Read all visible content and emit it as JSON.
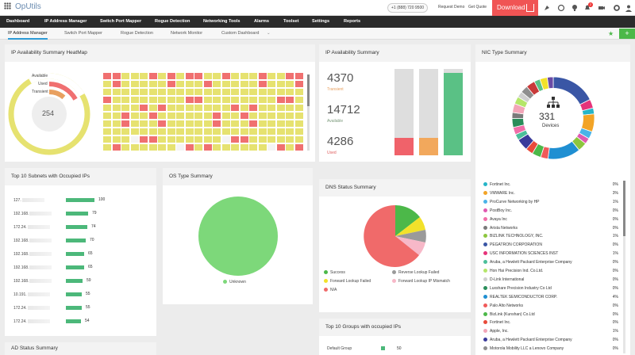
{
  "app": {
    "title": "OpUtils",
    "phone": "+1 (888) 720 9500",
    "request_demo": "Request Demo",
    "get_quote": "Get Quote",
    "download": "Download",
    "notification_count": "2"
  },
  "nav": [
    "Dashboard",
    "IP Address Manager",
    "Switch Port Mapper",
    "Rogue Detection",
    "Networking Tools",
    "Alarms",
    "Toolset",
    "Settings",
    "Reports"
  ],
  "tabs": [
    "IP Address Manager",
    "Switch Port Mapper",
    "Rogue Detection",
    "Network Monitor",
    "Custom Dashboard"
  ],
  "heatmap": {
    "title": "IP Availability Summary HeatMap",
    "legend": [
      "Available",
      "Used",
      "Transient"
    ],
    "center_value": "254",
    "colors": {
      "available": "#e6e270",
      "used": "#f07070",
      "transient": "#e8a060"
    }
  },
  "ip_summary": {
    "title": "IP Availability Summary",
    "transient_value": "4370",
    "transient_label": "Transient",
    "available_value": "14712",
    "available_label": "Available",
    "used_value": "4286",
    "used_label": "Used",
    "bars": [
      {
        "color": "#f0626a",
        "fill": 0.2
      },
      {
        "color": "#f2a85c",
        "fill": 0.2
      },
      {
        "color": "#5ac185",
        "fill": 0.95
      }
    ]
  },
  "nic": {
    "title": "NIC Type Summary",
    "center_value": "331",
    "center_label": "Devices",
    "rows": [
      {
        "name": "Fortinet Inc.",
        "pct": "0%",
        "color": "#26b5c8"
      },
      {
        "name": "VMWARE Inc.",
        "pct": "3%",
        "color": "#f2a427"
      },
      {
        "name": "ProCurve Networking by HP",
        "pct": "1%",
        "color": "#4ab3e8"
      },
      {
        "name": "PostBoy Inc.",
        "pct": "0%",
        "color": "#e05ab0"
      },
      {
        "name": "Avaya Inc",
        "pct": "0%",
        "color": "#f06ea8"
      },
      {
        "name": "Arista Networks",
        "pct": "0%",
        "color": "#7a7a7a"
      },
      {
        "name": "BIZLINK TECHNOLOGY, INC.",
        "pct": "1%",
        "color": "#8cc63e"
      },
      {
        "name": "PEGATRON CORPORATION",
        "pct": "0%",
        "color": "#3a56a5"
      },
      {
        "name": "USC INFORMATION SCIENCES INST",
        "pct": "1%",
        "color": "#e6337a"
      },
      {
        "name": "Aruba, a Hewlett Packard Enterprise Company",
        "pct": "0%",
        "color": "#4bbf9a"
      },
      {
        "name": "Hon Hai Precision Ind. Co.Ltd.",
        "pct": "0%",
        "color": "#b5e66a"
      },
      {
        "name": "D-Link International",
        "pct": "0%",
        "color": "#cfcfcf"
      },
      {
        "name": "Luxshare Precision Industry Co Ltd",
        "pct": "0%",
        "color": "#2a8d5a"
      },
      {
        "name": "REALTEK SEMICONDUCTOR CORP.",
        "pct": "4%",
        "color": "#1f8fd2"
      },
      {
        "name": "Palo Alto Networks",
        "pct": "0%",
        "color": "#f05a5a"
      },
      {
        "name": "BizLink (Kunshan) Co.Ltd",
        "pct": "0%",
        "color": "#4cb849"
      },
      {
        "name": "Fortinet Inc.",
        "pct": "0%",
        "color": "#e84a3a"
      },
      {
        "name": "Apple, Inc.",
        "pct": "1%",
        "color": "#f2a5b8"
      },
      {
        "name": "Aruba, a Hewlett Packard Enterprise Company",
        "pct": "0%",
        "color": "#3a3a9a"
      },
      {
        "name": "Motorola Mobility LLC a Lenovo Company",
        "pct": "0%",
        "color": "#8e8e8e"
      }
    ]
  },
  "subnets": {
    "title": "Top 10 Subnets with Occupied IPs",
    "rows": [
      {
        "label": "127.",
        "value": 100
      },
      {
        "label": "192.168.",
        "value": 79
      },
      {
        "label": "172.24.",
        "value": 74
      },
      {
        "label": "192.168.",
        "value": 70
      },
      {
        "label": "192.168.",
        "value": 65
      },
      {
        "label": "192.168.",
        "value": 65
      },
      {
        "label": "192.168.",
        "value": 59
      },
      {
        "label": "10.191.",
        "value": 55
      },
      {
        "label": "172.24.",
        "value": 55
      },
      {
        "label": "172.24.",
        "value": 54
      }
    ]
  },
  "os": {
    "title": "OS Type Summary",
    "legend": "Unknown",
    "color": "#7dd87a"
  },
  "dns": {
    "title": "DNS Status Summary",
    "legend": [
      {
        "label": "Success",
        "color": "#4cb849"
      },
      {
        "label": "Reverse Lookup Failed",
        "color": "#9a9a9a"
      },
      {
        "label": "Forward Lookup Failed",
        "color": "#f2e12a"
      },
      {
        "label": "Forward Lookup IP Mismatch",
        "color": "#f7b8c8"
      },
      {
        "label": "N/A",
        "color": "#f06a6a"
      }
    ]
  },
  "groups": {
    "title": "Top 10 Groups with occupied IPs",
    "rows": [
      {
        "label": "Default Group",
        "value": 50
      }
    ]
  },
  "ad": {
    "title": "AD Status Summary"
  }
}
